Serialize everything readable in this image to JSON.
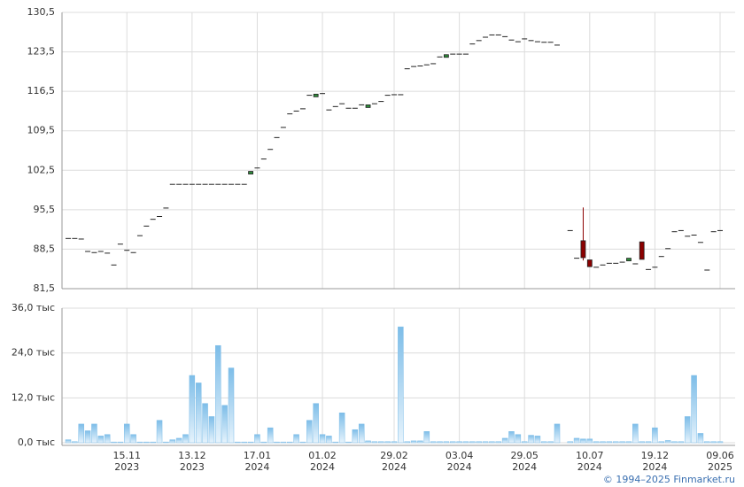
{
  "chart_data": [
    {
      "type": "candlestick",
      "up_color": "#2e8b3a",
      "down_color": "#8b0000",
      "open": [
        90.4,
        90.4,
        90.3,
        88.1,
        87.9,
        88.1,
        87.8,
        85.7,
        89.4,
        88.3,
        87.9,
        90.9,
        92.6,
        93.8,
        94.3,
        95.8,
        100,
        100,
        100,
        100,
        100,
        100,
        100,
        100,
        100,
        100,
        100,
        100,
        102.0,
        102.9,
        104.5,
        106.2,
        108.3,
        110.1,
        112.5,
        113,
        113.4,
        115.8,
        115.8,
        116.1,
        113.2,
        113.8,
        114.3,
        113.5,
        113.5,
        114.1,
        113.9,
        114.3,
        114.7,
        115.8,
        115.9,
        115.9,
        120.5,
        120.9,
        121,
        121.2,
        121.4,
        122.6,
        122.8,
        123.1,
        123.1,
        123.1,
        124.9,
        125.5,
        126.1,
        126.5,
        126.5,
        126.2,
        125.6,
        125.3,
        125.8,
        125.5,
        125.3,
        125.2,
        125.2,
        124.7,
        null,
        91.8,
        86.9,
        90,
        86.6,
        85.3,
        85.7,
        86,
        86,
        86.2,
        86.7,
        85.9,
        89.8,
        84.9,
        85.3,
        87.2,
        88.6,
        91.6,
        91.8,
        90.8,
        91,
        89.7,
        84.8,
        91.6,
        91.8
      ],
      "high": [
        90.4,
        90.4,
        90.3,
        88.1,
        87.9,
        88.1,
        87.8,
        85.7,
        89.4,
        88.3,
        87.9,
        90.9,
        92.6,
        93.8,
        94.3,
        95.8,
        100,
        100,
        100,
        100,
        100,
        100,
        100,
        100,
        100,
        100,
        100,
        100,
        102.3,
        102.9,
        104.5,
        106.2,
        108.3,
        110.1,
        112.5,
        113,
        113.4,
        115.8,
        116,
        116.1,
        113.2,
        113.8,
        114.3,
        113.5,
        113.5,
        114.1,
        114.1,
        114.3,
        114.7,
        115.8,
        115.9,
        115.9,
        120.5,
        120.9,
        121,
        121.2,
        121.4,
        122.6,
        123,
        123.1,
        123.1,
        123.1,
        124.9,
        125.5,
        126.1,
        126.5,
        126.5,
        126.2,
        125.6,
        125.3,
        125.8,
        125.5,
        125.3,
        125.2,
        125.2,
        124.7,
        null,
        91.8,
        86.9,
        95.9,
        86.6,
        85.3,
        85.7,
        86,
        86,
        86.2,
        86.9,
        85.9,
        89.8,
        84.9,
        85.3,
        87.2,
        88.6,
        91.6,
        91.8,
        90.8,
        91,
        89.7,
        84.8,
        91.6,
        91.8
      ],
      "low": [
        90.4,
        90.4,
        90.3,
        88.1,
        87.9,
        88.1,
        87.8,
        85.7,
        89.4,
        88.3,
        87.9,
        90.9,
        92.6,
        93.8,
        94.3,
        95.8,
        100,
        100,
        100,
        100,
        100,
        100,
        100,
        100,
        100,
        100,
        100,
        100,
        102.0,
        102.9,
        104.5,
        106.2,
        108.3,
        110.1,
        112.5,
        113,
        113.4,
        115.8,
        115.8,
        116.1,
        113.2,
        113.8,
        114.3,
        113.5,
        113.5,
        114.1,
        113.9,
        114.3,
        114.7,
        115.8,
        115.9,
        115.9,
        120.5,
        120.9,
        121,
        121.2,
        121.4,
        122.6,
        122.8,
        123.1,
        123.1,
        123.1,
        124.9,
        125.5,
        126.1,
        126.5,
        126.5,
        126.2,
        125.6,
        125.3,
        125.8,
        125.5,
        125.3,
        125.2,
        125.2,
        124.7,
        null,
        91.8,
        86.9,
        86.5,
        85.4,
        85.3,
        85.7,
        86,
        86,
        86.2,
        86.7,
        85.9,
        86.7,
        84.9,
        85.3,
        87.2,
        88.6,
        91.6,
        91.8,
        90.8,
        91,
        89.7,
        84.8,
        91.6,
        91.8
      ],
      "close": [
        90.4,
        90.4,
        90.3,
        88.1,
        87.9,
        88.1,
        87.8,
        85.7,
        89.4,
        88.3,
        87.9,
        90.9,
        92.6,
        93.8,
        94.3,
        95.8,
        100,
        100,
        100,
        100,
        100,
        100,
        100,
        100,
        100,
        100,
        100,
        100,
        102.3,
        102.9,
        104.5,
        106.2,
        108.3,
        110.1,
        112.5,
        113,
        113.4,
        115.8,
        116,
        116.1,
        113.2,
        113.8,
        114.3,
        113.5,
        113.5,
        114.1,
        114.1,
        114.3,
        114.7,
        115.8,
        115.9,
        115.9,
        120.5,
        120.9,
        121,
        121.2,
        121.4,
        122.6,
        123,
        123.1,
        123.1,
        123.1,
        124.9,
        125.5,
        126.1,
        126.5,
        126.5,
        126.2,
        125.6,
        125.3,
        125.8,
        125.5,
        125.3,
        125.2,
        125.2,
        124.7,
        null,
        91.8,
        86.9,
        87,
        85.4,
        85.3,
        85.7,
        86,
        86,
        86.2,
        86.9,
        85.9,
        86.7,
        84.9,
        85.3,
        87.2,
        88.6,
        91.6,
        91.8,
        90.8,
        91,
        89.7,
        84.8,
        91.6,
        91.8
      ],
      "ylim": [
        81.5,
        130.5
      ],
      "yticks": [
        {
          "value": 81.5,
          "label": "81,5"
        },
        {
          "value": 88.5,
          "label": "88,5"
        },
        {
          "value": 95.5,
          "label": "95,5"
        },
        {
          "value": 102.5,
          "label": "102,5"
        },
        {
          "value": 109.5,
          "label": "109,5"
        },
        {
          "value": 116.5,
          "label": "116,5"
        },
        {
          "value": 123.5,
          "label": "123,5"
        },
        {
          "value": 130.5,
          "label": "130,5"
        }
      ],
      "grid": true
    },
    {
      "type": "bar",
      "color": "#7dbde8",
      "categories": [
        null,
        null,
        null,
        null,
        null,
        null,
        null,
        null,
        null,
        "15.11\n2023",
        null,
        null,
        null,
        null,
        null,
        null,
        null,
        null,
        null,
        "13.12\n2023",
        null,
        null,
        null,
        null,
        null,
        null,
        null,
        null,
        null,
        "17.01\n2024",
        null,
        null,
        null,
        null,
        null,
        null,
        null,
        null,
        null,
        "01.02\n2024",
        null,
        null,
        null,
        null,
        null,
        null,
        null,
        null,
        null,
        null,
        "29.02\n2024",
        null,
        null,
        null,
        null,
        null,
        null,
        null,
        null,
        null,
        "03.04\n2024",
        null,
        null,
        null,
        null,
        null,
        null,
        null,
        null,
        null,
        "29.05\n2024",
        null,
        null,
        null,
        null,
        null,
        null,
        null,
        null,
        null,
        "10.07\n2024",
        null,
        null,
        null,
        null,
        null,
        null,
        null,
        null,
        null,
        "19.12\n2024",
        null,
        null,
        null,
        null,
        null,
        null,
        null,
        null,
        null,
        "09.06\n2025"
      ],
      "values": [
        0.8,
        0.3,
        5,
        3.2,
        5,
        1.8,
        2.2,
        0.2,
        0.2,
        5,
        2.2,
        0.2,
        0.2,
        0.2,
        6,
        0.2,
        0.8,
        1.2,
        2.2,
        18,
        16,
        10.5,
        7,
        26,
        10,
        20,
        0.2,
        0.2,
        0.2,
        2.2,
        0.2,
        4,
        0.2,
        0.2,
        0.2,
        2.2,
        0.2,
        6,
        10.5,
        2.2,
        1.8,
        0.2,
        8,
        0.2,
        3.5,
        5,
        0.5,
        0.3,
        0.3,
        0.3,
        0.3,
        31,
        0.3,
        0.5,
        0.5,
        3,
        0.3,
        0.3,
        0.3,
        0.3,
        0.3,
        0.3,
        0.3,
        0.3,
        0.3,
        0.3,
        0.3,
        1.2,
        3,
        2.2,
        0.3,
        2,
        1.8,
        0.3,
        0.3,
        5,
        null,
        0.3,
        1.2,
        1,
        1,
        0.3,
        0.3,
        0.3,
        0.3,
        0.3,
        0.3,
        5,
        0.3,
        0.3,
        4,
        0.3,
        0.6,
        0.3,
        0.3,
        7,
        18,
        2.5,
        0.3,
        0.3,
        0.3
      ],
      "ylim": [
        0,
        36
      ],
      "yticks": [
        {
          "value": 0,
          "label": "0,0 тыс"
        },
        {
          "value": 12,
          "label": "12,0 тыс"
        },
        {
          "value": 24,
          "label": "24,0 тыс"
        },
        {
          "value": 36,
          "label": "36,0 тыс"
        }
      ],
      "grid": true
    }
  ],
  "footer": "© 1994–2025 Finmarket.ru"
}
